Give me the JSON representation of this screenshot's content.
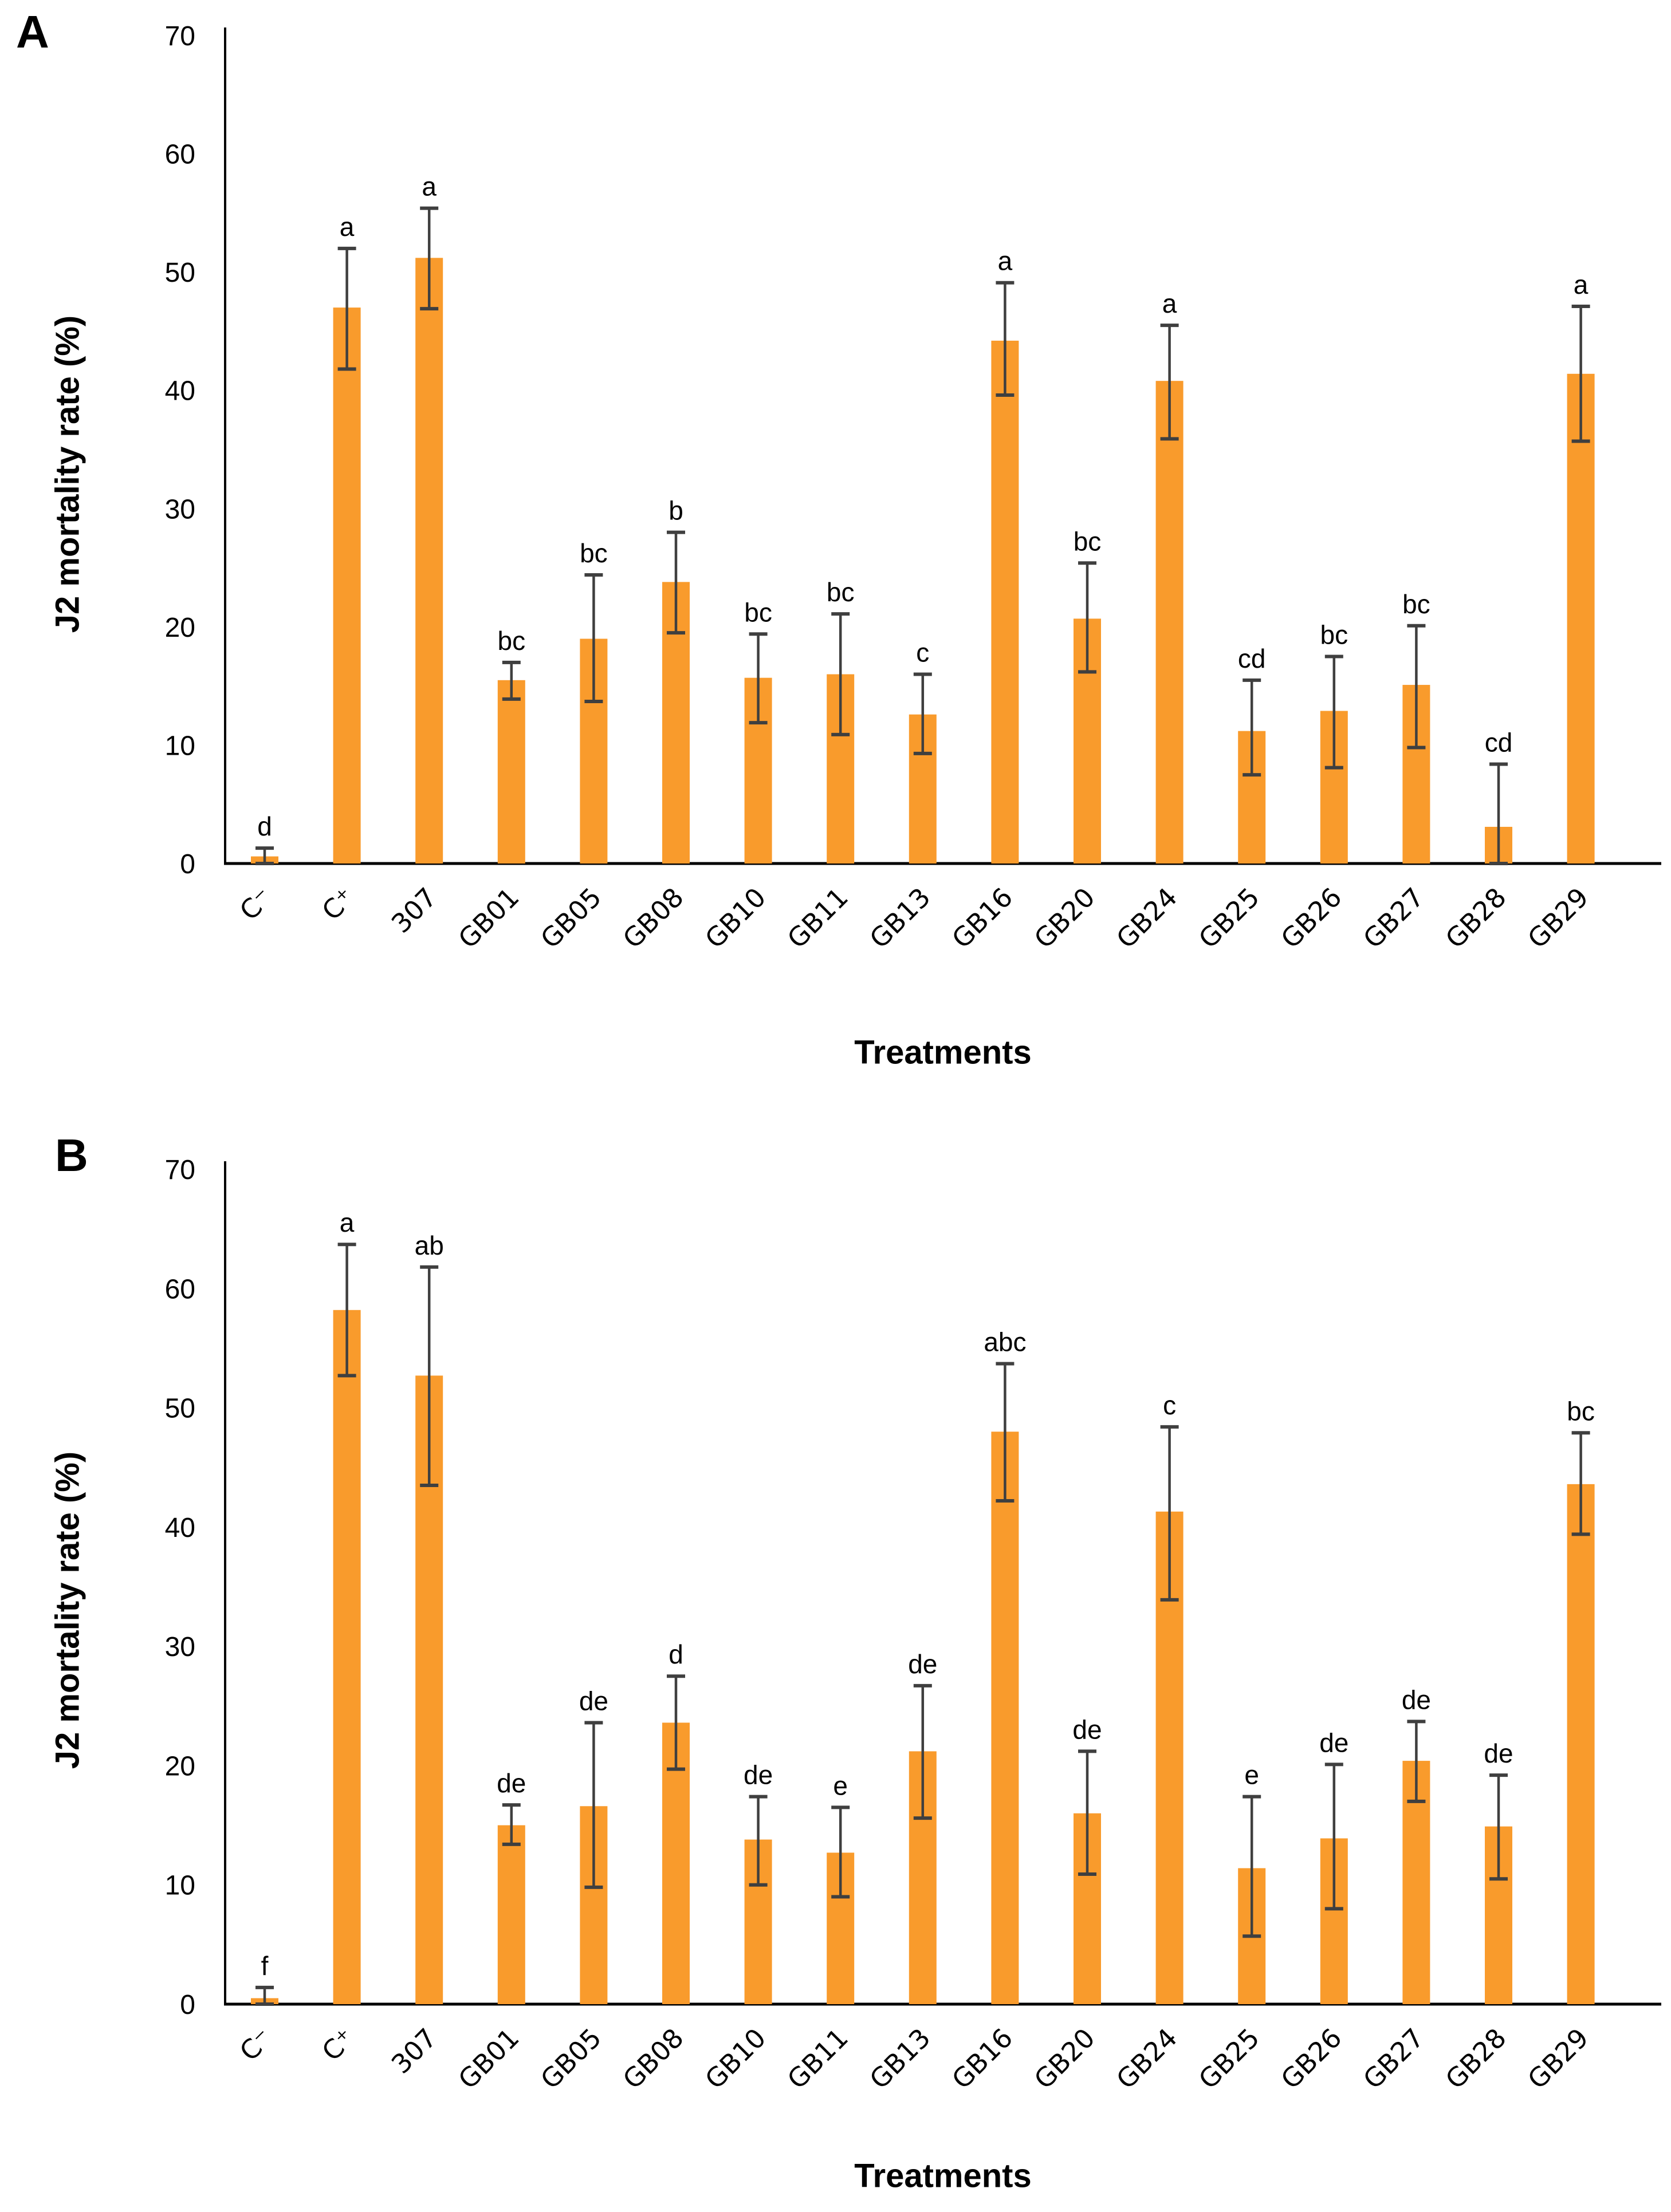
{
  "figure": {
    "background": "#FFFFFF"
  },
  "colors": {
    "bar_fill": "#F99B2C",
    "bar_edge_highlight": "#FBAE55",
    "error_bar": "#3F3F3F",
    "axis": "#000000",
    "text": "#000000"
  },
  "chart_data": [
    {
      "id": "panel-A",
      "panel_label": "A",
      "type": "bar",
      "title": "",
      "xlabel": "Treatments",
      "ylabel": "J2 mortality rate (%)",
      "ylim": [
        0,
        70
      ],
      "yticks": [
        0,
        10,
        20,
        30,
        40,
        50,
        60,
        70
      ],
      "grid": "off",
      "legend": "none",
      "categories": [
        "C⁻",
        "C⁺",
        "307",
        "GB01",
        "GB05",
        "GB08",
        "GB10",
        "GB11",
        "GB13",
        "GB16",
        "GB20",
        "GB24",
        "GB25",
        "GB26",
        "GB27",
        "GB28",
        "GB29"
      ],
      "values": [
        0.6,
        47.0,
        51.2,
        15.5,
        19.0,
        23.8,
        15.7,
        16.0,
        12.6,
        44.2,
        20.7,
        40.8,
        11.2,
        12.9,
        15.1,
        3.1,
        41.4
      ],
      "err_up": [
        0.7,
        5.0,
        4.2,
        1.5,
        5.4,
        4.2,
        3.7,
        5.1,
        3.4,
        4.9,
        4.7,
        4.7,
        4.3,
        4.6,
        5.0,
        5.3,
        5.7
      ],
      "err_down": [
        0.6,
        5.2,
        4.3,
        1.6,
        5.3,
        4.3,
        3.8,
        5.1,
        3.3,
        4.6,
        4.5,
        4.9,
        3.7,
        4.8,
        5.3,
        3.1,
        5.7
      ],
      "sig_letters": [
        "d",
        "a",
        "a",
        "bc",
        "bc",
        "b",
        "bc",
        "bc",
        "c",
        "a",
        "bc",
        "a",
        "cd",
        "bc",
        "bc",
        "cd",
        "a"
      ]
    },
    {
      "id": "panel-B",
      "panel_label": "B",
      "type": "bar",
      "title": "",
      "xlabel": "Treatments",
      "ylabel": "J2 mortality rate (%)",
      "ylim": [
        0,
        70
      ],
      "yticks": [
        0,
        10,
        20,
        30,
        40,
        50,
        60,
        70
      ],
      "grid": "off",
      "legend": "none",
      "categories": [
        "C⁻",
        "C⁺",
        "307",
        "GB01",
        "GB05",
        "GB08",
        "GB10",
        "GB11",
        "GB13",
        "GB16",
        "GB20",
        "GB24",
        "GB25",
        "GB26",
        "GB27",
        "GB28",
        "GB29"
      ],
      "values": [
        0.5,
        58.2,
        52.7,
        15.0,
        16.6,
        23.6,
        13.8,
        12.7,
        21.2,
        48.0,
        16.0,
        41.3,
        11.4,
        13.9,
        20.4,
        14.9,
        43.6
      ],
      "err_up": [
        0.9,
        5.5,
        9.1,
        1.7,
        7.0,
        3.9,
        3.6,
        3.8,
        5.5,
        5.7,
        5.2,
        7.1,
        6.0,
        6.2,
        3.3,
        4.3,
        4.3
      ],
      "err_down": [
        0.5,
        5.5,
        9.2,
        1.6,
        6.8,
        3.9,
        3.8,
        3.7,
        5.6,
        5.8,
        5.1,
        7.4,
        5.7,
        5.9,
        3.4,
        4.4,
        4.2
      ],
      "sig_letters": [
        "f",
        "a",
        "ab",
        "de",
        "de",
        "d",
        "de",
        "e",
        "de",
        "abc",
        "de",
        "c",
        "e",
        "de",
        "de",
        "de",
        "bc"
      ]
    }
  ]
}
